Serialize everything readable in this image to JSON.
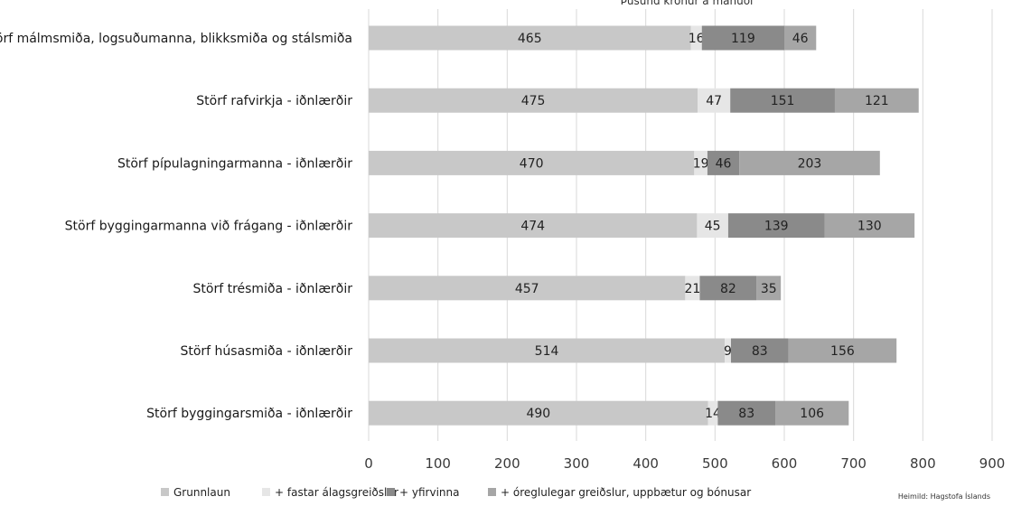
{
  "chart_data": {
    "type": "bar",
    "orientation": "horizontal",
    "stacked": true,
    "title_fragment": "Þúsund krónur á mánuði",
    "categories": [
      "Störf málmsmiða, logsuðumanna, blikksmiða og stálsmiða",
      "Störf rafvirkja - iðnlærðir",
      "Störf pípulagningarmanna - iðnlærðir",
      "Störf byggingarmanna við frágang - iðnlærðir",
      "Störf trésmiða - iðnlærðir",
      "Störf húsasmiða - iðnlærðir",
      "Störf byggingarsmiða - iðnlærðir"
    ],
    "series": [
      {
        "name": "Grunnlaun",
        "color": "#c8c8c8",
        "values": [
          465,
          475,
          470,
          474,
          457,
          514,
          490
        ]
      },
      {
        "name": "+ fastar álagsgreiðslur",
        "color": "#e6e6e6",
        "values": [
          16,
          47,
          19,
          45,
          21,
          9,
          14
        ]
      },
      {
        "name": "+ yfirvinna",
        "color": "#8a8a8a",
        "values": [
          119,
          151,
          46,
          139,
          82,
          83,
          83
        ]
      },
      {
        "name": "+ óreglulegar greiðslur, uppbætur og bónusar",
        "color": "#a6a6a6",
        "values": [
          46,
          121,
          203,
          130,
          35,
          156,
          106
        ]
      }
    ],
    "xlim": [
      0,
      900
    ],
    "xticks": [
      0,
      100,
      200,
      300,
      400,
      500,
      600,
      700,
      800,
      900
    ],
    "grid": true,
    "legend_position": "bottom",
    "source": "Heimild: Hagstofa Íslands"
  }
}
